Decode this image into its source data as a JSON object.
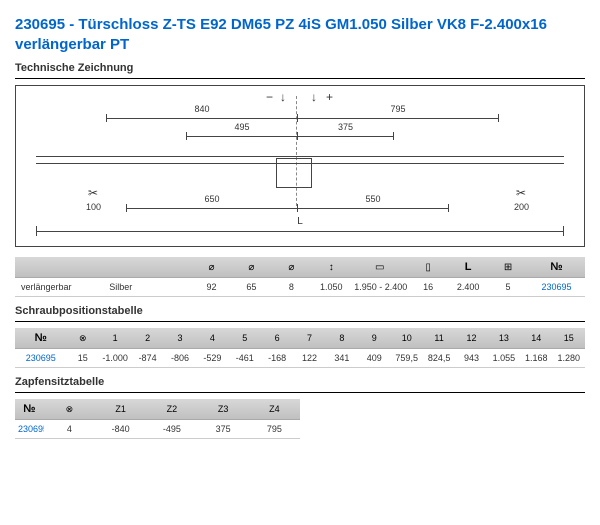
{
  "title": "230695 - Türschloss Z-TS E92 DM65 PZ 4iS GM1.050 Silber VK8 F-2.400x16 verlängerbar PT",
  "headings": {
    "drawing": "Technische Zeichnung",
    "screws": "Schraubpositionstabelle",
    "pins": "Zapfensitztabelle"
  },
  "drawing": {
    "dims": {
      "d840": "840",
      "d795": "795",
      "d495": "495",
      "d375": "375",
      "d650": "650",
      "d550": "550",
      "d100": "100",
      "d200": "200",
      "L": "L"
    },
    "symbols": {
      "minus": "−",
      "plus": "+",
      "screw": "↓",
      "scissor": "✂"
    }
  },
  "spec_table": {
    "headers": {
      "c1": "",
      "c2": "",
      "c3": "⌀",
      "c4": "⌀",
      "c5": "⌀",
      "c6": "↕",
      "c7": "▭",
      "c8": "▯",
      "c9": "L",
      "c10": "⊞",
      "c11": "№"
    },
    "row": {
      "c1": "verlängerbar",
      "c2": "Silber",
      "c3": "92",
      "c4": "65",
      "c5": "8",
      "c6": "1.050",
      "c7": "1.950 - 2.400",
      "c8": "16",
      "c9": "2.400",
      "c10": "5",
      "c11": "230695"
    }
  },
  "screw_table": {
    "headers": [
      "№",
      "⊗",
      "1",
      "2",
      "3",
      "4",
      "5",
      "6",
      "7",
      "8",
      "9",
      "10",
      "11",
      "12",
      "13",
      "14",
      "15"
    ],
    "row": [
      "230695",
      "15",
      "-1.000",
      "-874",
      "-806",
      "-529",
      "-461",
      "-168",
      "122",
      "341",
      "409",
      "759,5",
      "824,5",
      "943",
      "1.055",
      "1.168",
      "1.280"
    ]
  },
  "pin_table": {
    "headers": [
      "№",
      "⊗",
      "Z1",
      "Z2",
      "Z3",
      "Z4"
    ],
    "row": [
      "230695",
      "4",
      "-840",
      "-495",
      "375",
      "795"
    ]
  }
}
